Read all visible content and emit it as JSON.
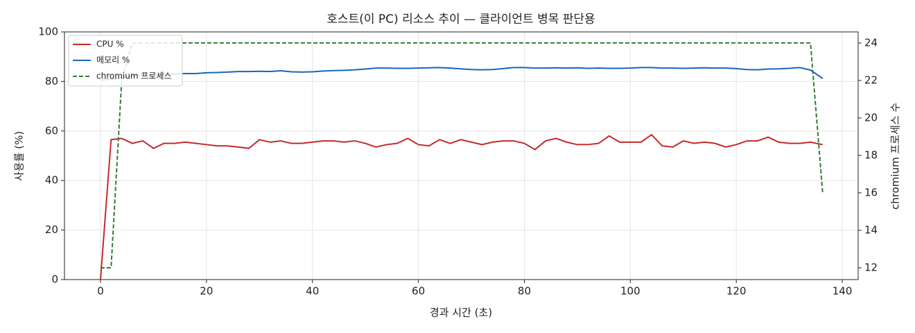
{
  "chart_data": {
    "type": "line",
    "title": "호스트(이 PC) 리소스 추이 — 클라이언트 병목 판단용",
    "xlabel": "경과 시간 (초)",
    "ylabel": "사용률 (%)",
    "y2label": "chromium 프로세스 수",
    "x": [
      0,
      2,
      4,
      6,
      8,
      10,
      12,
      14,
      16,
      18,
      20,
      22,
      24,
      26,
      28,
      30,
      32,
      34,
      36,
      38,
      40,
      42,
      44,
      46,
      48,
      50,
      52,
      54,
      56,
      58,
      60,
      62,
      64,
      66,
      68,
      70,
      72,
      74,
      76,
      78,
      80,
      82,
      84,
      86,
      88,
      90,
      92,
      94,
      96,
      98,
      100,
      102,
      104,
      106,
      108,
      110,
      112,
      114,
      116,
      118,
      120,
      122,
      124,
      126,
      128,
      130,
      132,
      134,
      136.3
    ],
    "series": [
      {
        "name": "CPU %",
        "color": "#c62828",
        "linestyle": "solid",
        "axis": "y",
        "values": [
          0,
          56.5,
          57,
          55,
          56,
          53,
          55,
          55,
          55.5,
          55,
          54.5,
          54,
          54,
          53.5,
          53,
          56.5,
          55.5,
          56,
          55,
          55,
          55.5,
          56,
          56,
          55.5,
          56,
          55,
          53.5,
          54.5,
          55,
          57,
          54.5,
          54,
          56.5,
          55,
          56.5,
          55.5,
          54.5,
          55.5,
          56,
          56,
          55,
          52.5,
          56,
          57,
          55.5,
          54.5,
          54.5,
          55,
          58,
          55.5,
          55.5,
          55.5,
          58.5,
          54,
          53.5,
          56,
          55,
          55.5,
          55,
          53.5,
          54.5,
          56,
          56,
          57.5,
          55.5,
          55,
          55,
          55.5,
          54.5
        ]
      },
      {
        "name": "메모리 %",
        "color": "#1565c0",
        "linestyle": "solid",
        "axis": "y",
        "values": [
          80.5,
          81,
          81.5,
          82.3,
          82.8,
          83,
          83,
          83,
          83.2,
          83.2,
          83.5,
          83.6,
          83.8,
          84,
          84,
          84.1,
          84,
          84.3,
          83.9,
          83.8,
          83.9,
          84.2,
          84.4,
          84.5,
          84.7,
          85,
          85.4,
          85.4,
          85.3,
          85.3,
          85.4,
          85.5,
          85.6,
          85.4,
          85.1,
          84.8,
          84.7,
          84.8,
          85.2,
          85.6,
          85.6,
          85.4,
          85.4,
          85.5,
          85.4,
          85.5,
          85.3,
          85.4,
          85.3,
          85.3,
          85.4,
          85.6,
          85.6,
          85.4,
          85.4,
          85.3,
          85.4,
          85.5,
          85.4,
          85.4,
          85.2,
          84.8,
          84.7,
          85,
          85.1,
          85.3,
          85.6,
          84.6,
          81.2
        ]
      },
      {
        "name": "chromium 프로세스",
        "color": "#2e7d32",
        "linestyle": "dashed",
        "axis": "y2",
        "values": [
          12,
          12,
          22,
          24,
          24,
          24,
          24,
          24,
          24,
          24,
          24,
          24,
          24,
          24,
          24,
          24,
          24,
          24,
          24,
          24,
          24,
          24,
          24,
          24,
          24,
          24,
          24,
          24,
          24,
          24,
          24,
          24,
          24,
          24,
          24,
          24,
          24,
          24,
          24,
          24,
          24,
          24,
          24,
          24,
          24,
          24,
          24,
          24,
          24,
          24,
          24,
          24,
          24,
          24,
          24,
          24,
          24,
          24,
          24,
          24,
          24,
          24,
          24,
          24,
          24,
          24,
          24,
          24,
          16
        ]
      }
    ],
    "xlim": [
      -6.8,
      143.0
    ],
    "xticks": [
      0,
      20,
      40,
      60,
      80,
      100,
      120,
      140
    ],
    "ylim": [
      0,
      100
    ],
    "yticks": [
      0,
      20,
      40,
      60,
      80,
      100
    ],
    "y2lim": [
      11.37,
      24.59
    ],
    "y2ticks": [
      12,
      14,
      16,
      18,
      20,
      22,
      24
    ],
    "grid": true,
    "legend": "upper left"
  }
}
